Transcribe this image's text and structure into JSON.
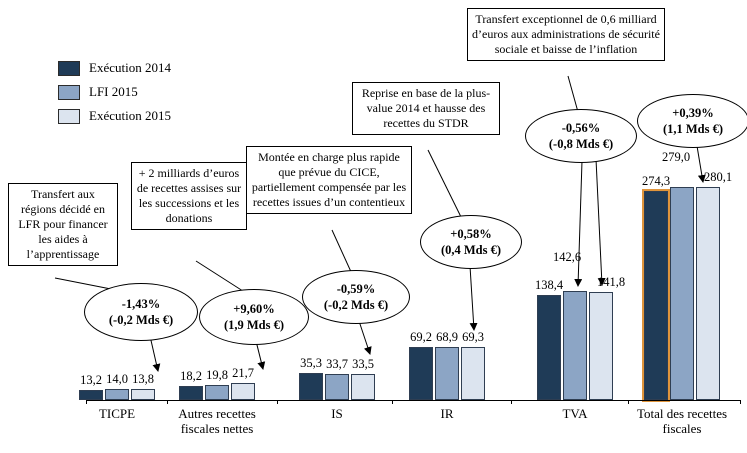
{
  "legend": {
    "items": [
      {
        "label": "Exécution 2014",
        "color": "#1f3b57"
      },
      {
        "label": "LFI 2015",
        "color": "#8ca5c5"
      },
      {
        "label": "Exécution 2015",
        "color": "#dce4ef"
      }
    ]
  },
  "chart_data": {
    "type": "bar",
    "title": "",
    "categories": [
      "TICPE",
      "Autres recettes fiscales nettes",
      "IS",
      "IR",
      "TVA",
      "Total des recettes fiscales"
    ],
    "series": [
      {
        "name": "Exécution 2014",
        "color": "#1f3b57",
        "values": [
          13.2,
          18.2,
          35.3,
          69.2,
          138.4,
          274.3
        ]
      },
      {
        "name": "LFI 2015",
        "color": "#8ca5c5",
        "values": [
          14.0,
          19.8,
          33.7,
          68.9,
          142.6,
          279.0
        ]
      },
      {
        "name": "Exécution 2015",
        "color": "#dce4ef",
        "values": [
          13.8,
          21.7,
          33.5,
          69.3,
          141.8,
          280.1
        ]
      }
    ],
    "value_labels": [
      [
        "13,2",
        "14,0",
        "13,8"
      ],
      [
        "18,2",
        "19,8",
        "21,7"
      ],
      [
        "35,3",
        "33,7",
        "33,5"
      ],
      [
        "69,2",
        "68,9",
        "69,3"
      ],
      [
        "138,4",
        "142,6",
        "141,8"
      ],
      [
        "274,3",
        "279,0",
        "280,1"
      ]
    ],
    "ylim": [
      0,
      290
    ],
    "grid": false,
    "legend_position": "top-left",
    "highlight": {
      "category_index": 5,
      "series_index": 0,
      "color": "#e0953c"
    }
  },
  "annotations": [
    {
      "box": "Transfert aux régions décidé en LFR pour financer les aides à l’apprentissage",
      "pct": "-1,43%",
      "amount": "(-0,2 Mds €)"
    },
    {
      "box": "+ 2 milliards d’euros de recettes assises sur les successions et les donations",
      "pct": "+9,60%",
      "amount": "(1,9 Mds €)"
    },
    {
      "box": "Montée en charge plus rapide que prévue du CICE, partiellement compensée par les recettes issues d’un contentieux",
      "pct": "-0,59%",
      "amount": "(-0,2 Mds €)"
    },
    {
      "box": "Reprise en base de la plus-value 2014 et hausse des recettes du STDR",
      "pct": "+0,58%",
      "amount": "(0,4 Mds €)"
    },
    {
      "box": "Transfert exceptionnel de 0,6 milliard d’euros aux administrations de sécurité sociale et baisse de l’inflation",
      "pct": "-0,56%",
      "amount": "(-0,8 Mds €)"
    },
    {
      "box": "",
      "pct": "+0,39%",
      "amount": "(1,1 Mds €)"
    }
  ]
}
